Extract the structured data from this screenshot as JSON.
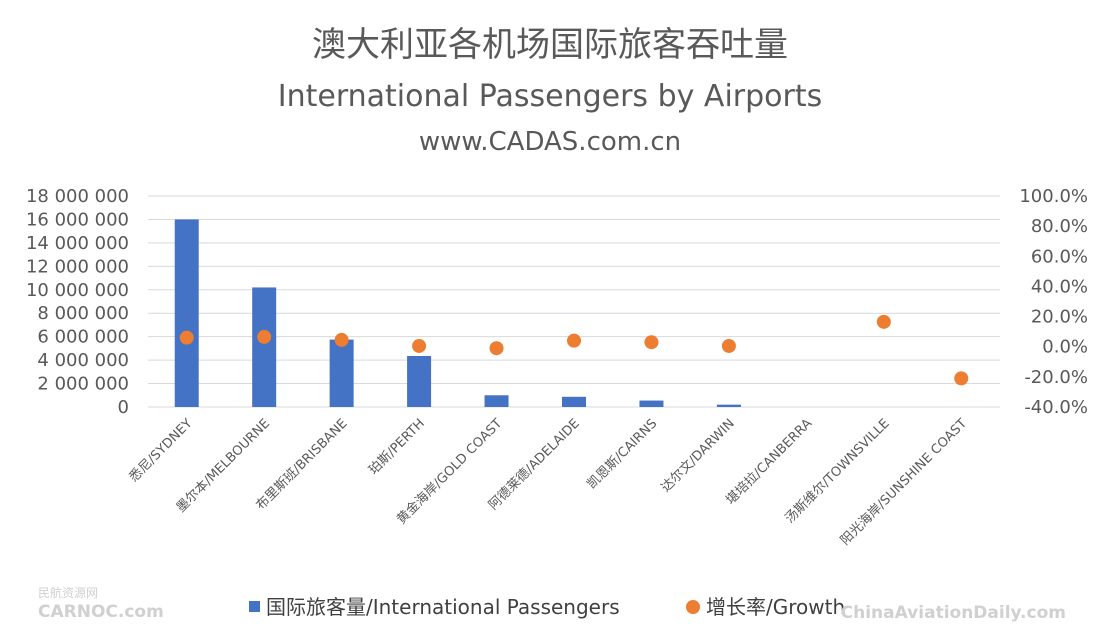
{
  "chart_data": {
    "type": "bar",
    "title": "澳大利亚各机场国际旅客吞吐量",
    "subtitle": "International Passengers by Airports",
    "source": "www.CADAS.com.cn",
    "categories": [
      "悉尼/SYDNEY",
      "墨尔本/MELBOURNE",
      "布里斯班/BRISBANE",
      "珀斯/PERTH",
      "黄金海岸/GOLD COAST",
      "阿德莱德/ADELAIDE",
      "凯恩斯/CAIRNS",
      "达尔文/DARWIN",
      "堪培拉/CANBERRA",
      "汤斯维尔/TOWNSVILLE",
      "阳光海岸/SUNSHINE COAST"
    ],
    "series": [
      {
        "name": "国际旅客量/International Passengers",
        "type": "bar",
        "axis": "left",
        "color": "#4472C4",
        "values": [
          16000000,
          10200000,
          5750000,
          4350000,
          1000000,
          870000,
          550000,
          200000,
          0,
          0,
          0
        ]
      },
      {
        "name": "增长率/Growth",
        "type": "scatter",
        "axis": "right",
        "color": "#ED7D31",
        "values": [
          0.06,
          0.065,
          0.045,
          0.005,
          -0.01,
          0.04,
          0.03,
          0.005,
          null,
          0.165,
          -0.21
        ]
      }
    ],
    "y_left": {
      "min": 0,
      "max": 18000000,
      "ticks": [
        "0",
        "2 000 000",
        "4 000 000",
        "6 000 000",
        "8 000 000",
        "10 000 000",
        "12 000 000",
        "14 000 000",
        "16 000 000",
        "18 000 000"
      ]
    },
    "y_right": {
      "min": -0.4,
      "max": 1.0,
      "ticks": [
        "-40.0%",
        "-20.0%",
        "0.0%",
        "20.0%",
        "40.0%",
        "60.0%",
        "80.0%",
        "100.0%"
      ]
    },
    "grid": true,
    "legend_position": "bottom"
  },
  "watermarks": {
    "left_top": "民航资源网",
    "left_bottom": "CARNOC.com",
    "right": "ChinaAviationDaily.com"
  }
}
